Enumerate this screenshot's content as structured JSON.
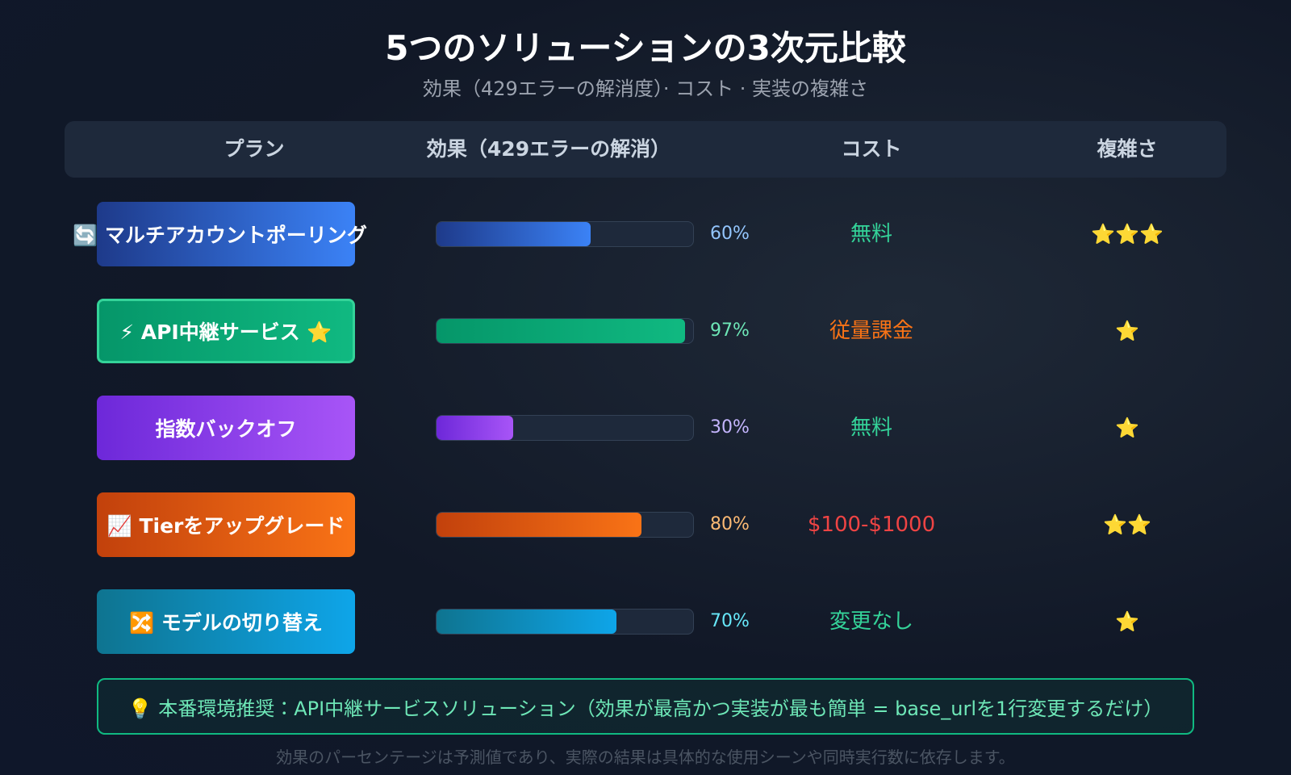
{
  "title": "5つのソリューションの3次元比較",
  "subtitle": "効果（429エラーの解消度）· コスト · 実装の複雑さ",
  "header": {
    "plan": "プラン",
    "effect": "効果（429エラーの解消）",
    "cost": "コスト",
    "complexity": "複雑さ"
  },
  "rows": [
    {
      "plan": "🔄 マルチアカウントポーリング",
      "effect": {
        "value": 60,
        "label": "60%"
      },
      "cost": "無料",
      "complexity": "⭐⭐⭐"
    },
    {
      "plan": "⚡ API中継サービス ⭐",
      "effect": {
        "value": 97,
        "label": "97%"
      },
      "cost": "従量課金",
      "complexity": "⭐"
    },
    {
      "plan": "指数バックオフ",
      "effect": {
        "value": 30,
        "label": "30%"
      },
      "cost": "無料",
      "complexity": "⭐"
    },
    {
      "plan": "📈 Tierをアップグレード",
      "effect": {
        "value": 80,
        "label": "80%"
      },
      "cost": "$100-$1000",
      "complexity": "⭐⭐"
    },
    {
      "plan": "🔀 モデルの切り替え",
      "effect": {
        "value": 70,
        "label": "70%"
      },
      "cost": "変更なし",
      "complexity": "⭐"
    }
  ],
  "recommendation": "💡 本番環境推奨：API中継サービスソリューション（効果が最高かつ実装が最も簡単 = base_urlを1行変更するだけ）",
  "note": "効果のパーセンテージは予測値であり、実際の結果は具体的な使用シーンや同時実行数に依存します。"
}
